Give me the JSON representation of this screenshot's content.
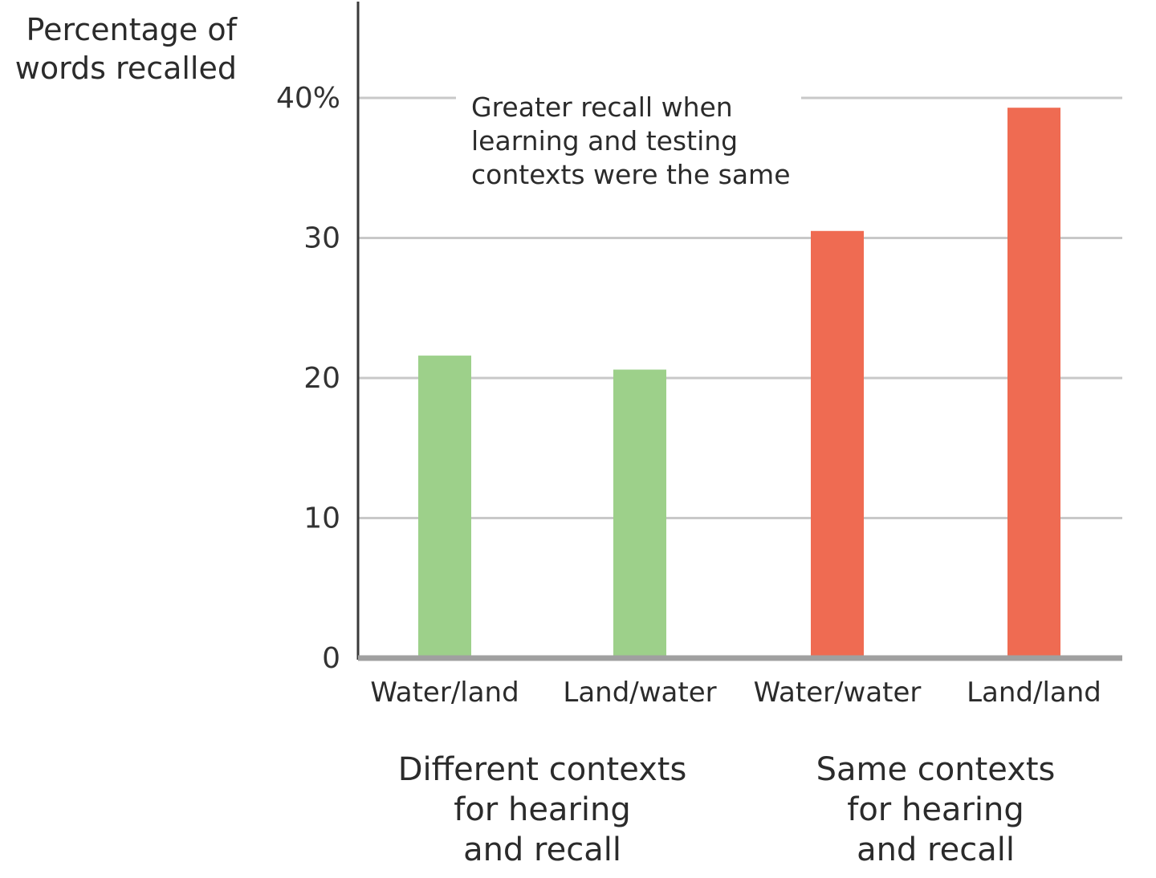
{
  "chart_data": {
    "type": "bar",
    "ylabel": [
      "Percentage of",
      "words recalled"
    ],
    "ylim": [
      0,
      40
    ],
    "yticks": [
      {
        "value": 0,
        "label": "0"
      },
      {
        "value": 10,
        "label": "10"
      },
      {
        "value": 20,
        "label": "20"
      },
      {
        "value": 30,
        "label": "30"
      },
      {
        "value": 40,
        "label": "40%"
      }
    ],
    "grid": true,
    "categories": [
      "Water/land",
      "Land/water",
      "Water/water",
      "Land/land"
    ],
    "values": [
      21.6,
      20.6,
      30.5,
      39.3
    ],
    "bar_colors": [
      "#9dd08a",
      "#9dd08a",
      "#ef6b52",
      "#ef6b52"
    ],
    "groups": [
      {
        "lines": [
          "Different contexts",
          "for hearing",
          "and recall"
        ],
        "categories": [
          0,
          1
        ]
      },
      {
        "lines": [
          "Same contexts",
          "for hearing",
          "and recall"
        ],
        "categories": [
          2,
          3
        ]
      }
    ],
    "annotation": [
      "Greater recall when",
      "learning and testing",
      "contexts were the same"
    ]
  },
  "colors": {
    "gridline": "#c8c8c8",
    "axis": "#3a3a3a",
    "baseline": "#a0a0a0"
  }
}
